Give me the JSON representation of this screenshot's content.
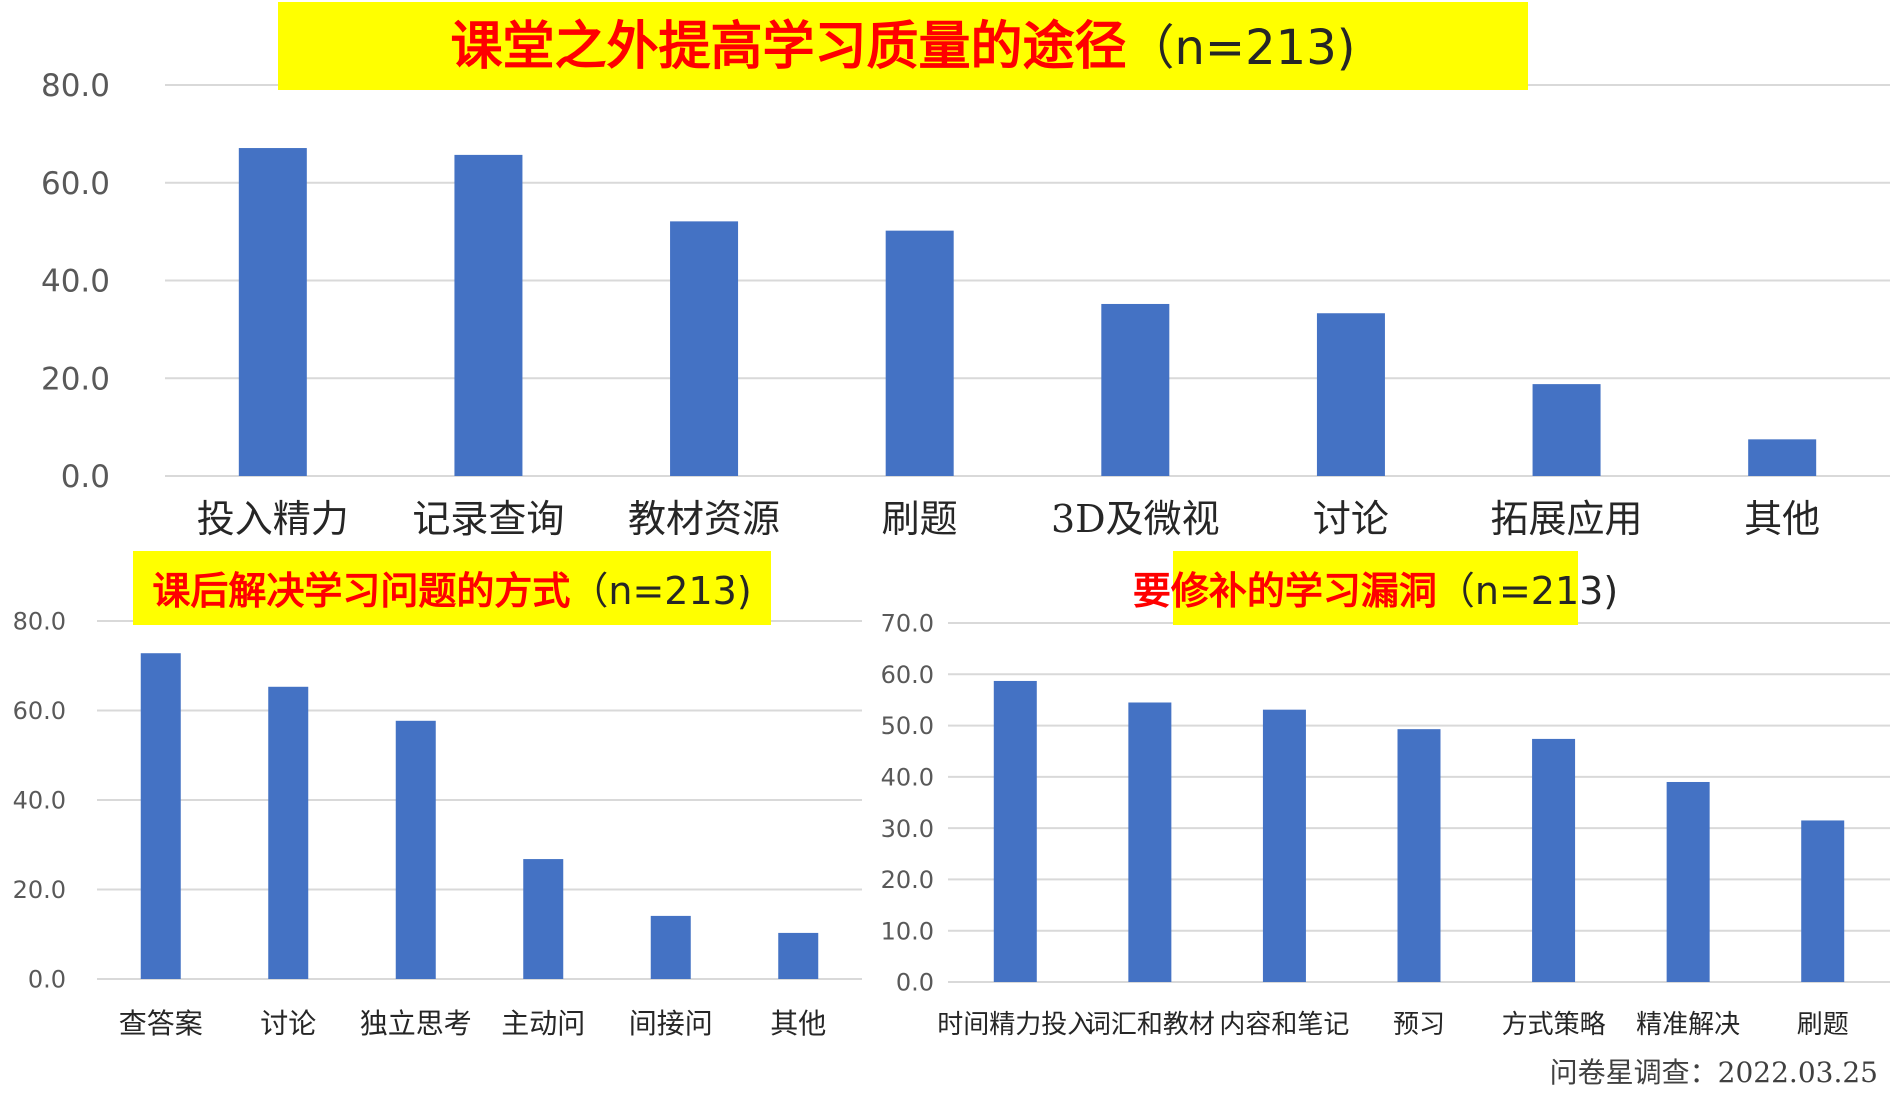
{
  "colors": {
    "bar": "#4472c4",
    "title_background": "#ffff00",
    "title_text": "#ff0000",
    "gridline": "#d9d9d9"
  },
  "source_note": "问卷星调查：2022.03.25",
  "chart_data": [
    {
      "type": "bar",
      "title": "课堂之外提高学习质量的途径",
      "title_suffix": "（n=213)",
      "categories": [
        "投入精力",
        "记录查询",
        "教材资源",
        "刷题",
        "3D及微视",
        "讨论",
        "拓展应用",
        "其他"
      ],
      "values": [
        67.1,
        65.7,
        52.1,
        50.2,
        35.2,
        33.3,
        18.8,
        7.5
      ],
      "ylim": [
        0,
        80
      ],
      "yticks": [
        "0.0",
        "20.0",
        "40.0",
        "60.0",
        "80.0"
      ],
      "grid": true
    },
    {
      "type": "bar",
      "title": "课后解决学习问题的方式",
      "title_suffix": "（n=213)",
      "categories": [
        "查答案",
        "讨论",
        "独立思考",
        "主动问",
        "间接问",
        "其他"
      ],
      "values": [
        72.8,
        65.3,
        57.7,
        26.8,
        14.1,
        10.3
      ],
      "ylim": [
        0,
        80
      ],
      "yticks": [
        "0.0",
        "20.0",
        "40.0",
        "60.0",
        "80.0"
      ],
      "grid": true
    },
    {
      "type": "bar",
      "title": "要修补的学习漏洞",
      "title_suffix": "（n=213)",
      "categories": [
        "时间精力投入",
        "词汇和教材",
        "内容和笔记",
        "预习",
        "方式策略",
        "精准解决",
        "刷题"
      ],
      "values": [
        58.7,
        54.5,
        53.1,
        49.3,
        47.4,
        39.0,
        31.5
      ],
      "ylim": [
        0,
        70
      ],
      "yticks": [
        "0.0",
        "10.0",
        "20.0",
        "30.0",
        "40.0",
        "50.0",
        "60.0",
        "70.0"
      ],
      "grid": true
    }
  ]
}
